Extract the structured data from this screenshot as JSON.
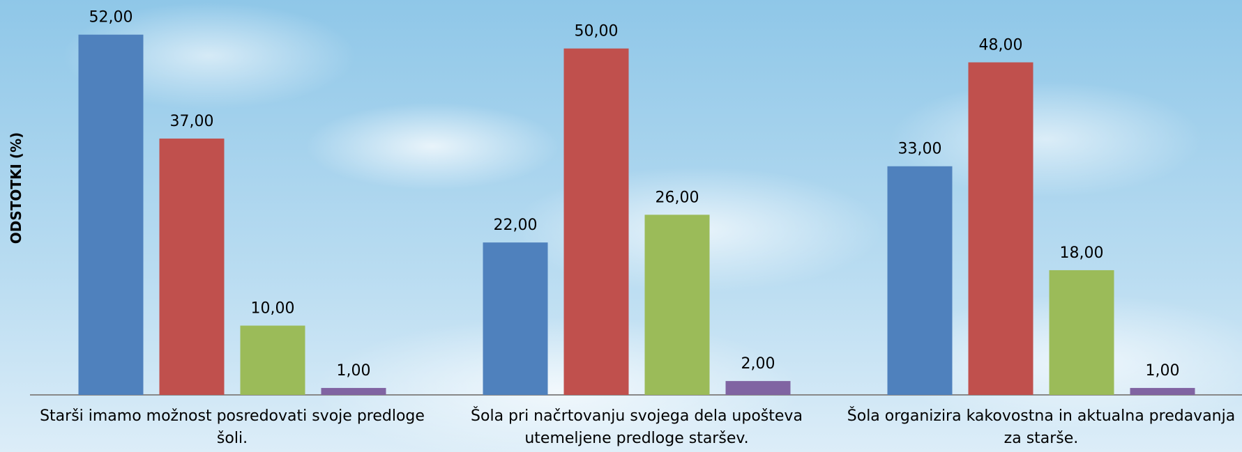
{
  "chart_data": {
    "type": "bar",
    "y_label": "ODSTOTKI (%)",
    "categories": [
      "Starši imamo možnost posredovati svoje predloge šoli.",
      "Šola pri načrtovanju svojega dela upošteva utemeljene predloge staršev.",
      "Šola organizira kakovostna in aktualna predavanja za starše."
    ],
    "series": [
      {
        "color": "#4f81bd",
        "values": [
          52,
          22,
          33
        ],
        "value_labels": [
          "52,00",
          "22,00",
          "33,00"
        ]
      },
      {
        "color": "#c0504d",
        "values": [
          37,
          50,
          48
        ],
        "value_labels": [
          "37,00",
          "50,00",
          "48,00"
        ]
      },
      {
        "color": "#9bbb59",
        "values": [
          10,
          26,
          18
        ],
        "value_labels": [
          "10,00",
          "26,00",
          "18,00"
        ]
      },
      {
        "color": "#8064a2",
        "values": [
          1,
          2,
          1
        ],
        "value_labels": [
          "1,00",
          "2,00",
          "1,00"
        ]
      }
    ],
    "ylim": [
      0,
      57
    ]
  }
}
